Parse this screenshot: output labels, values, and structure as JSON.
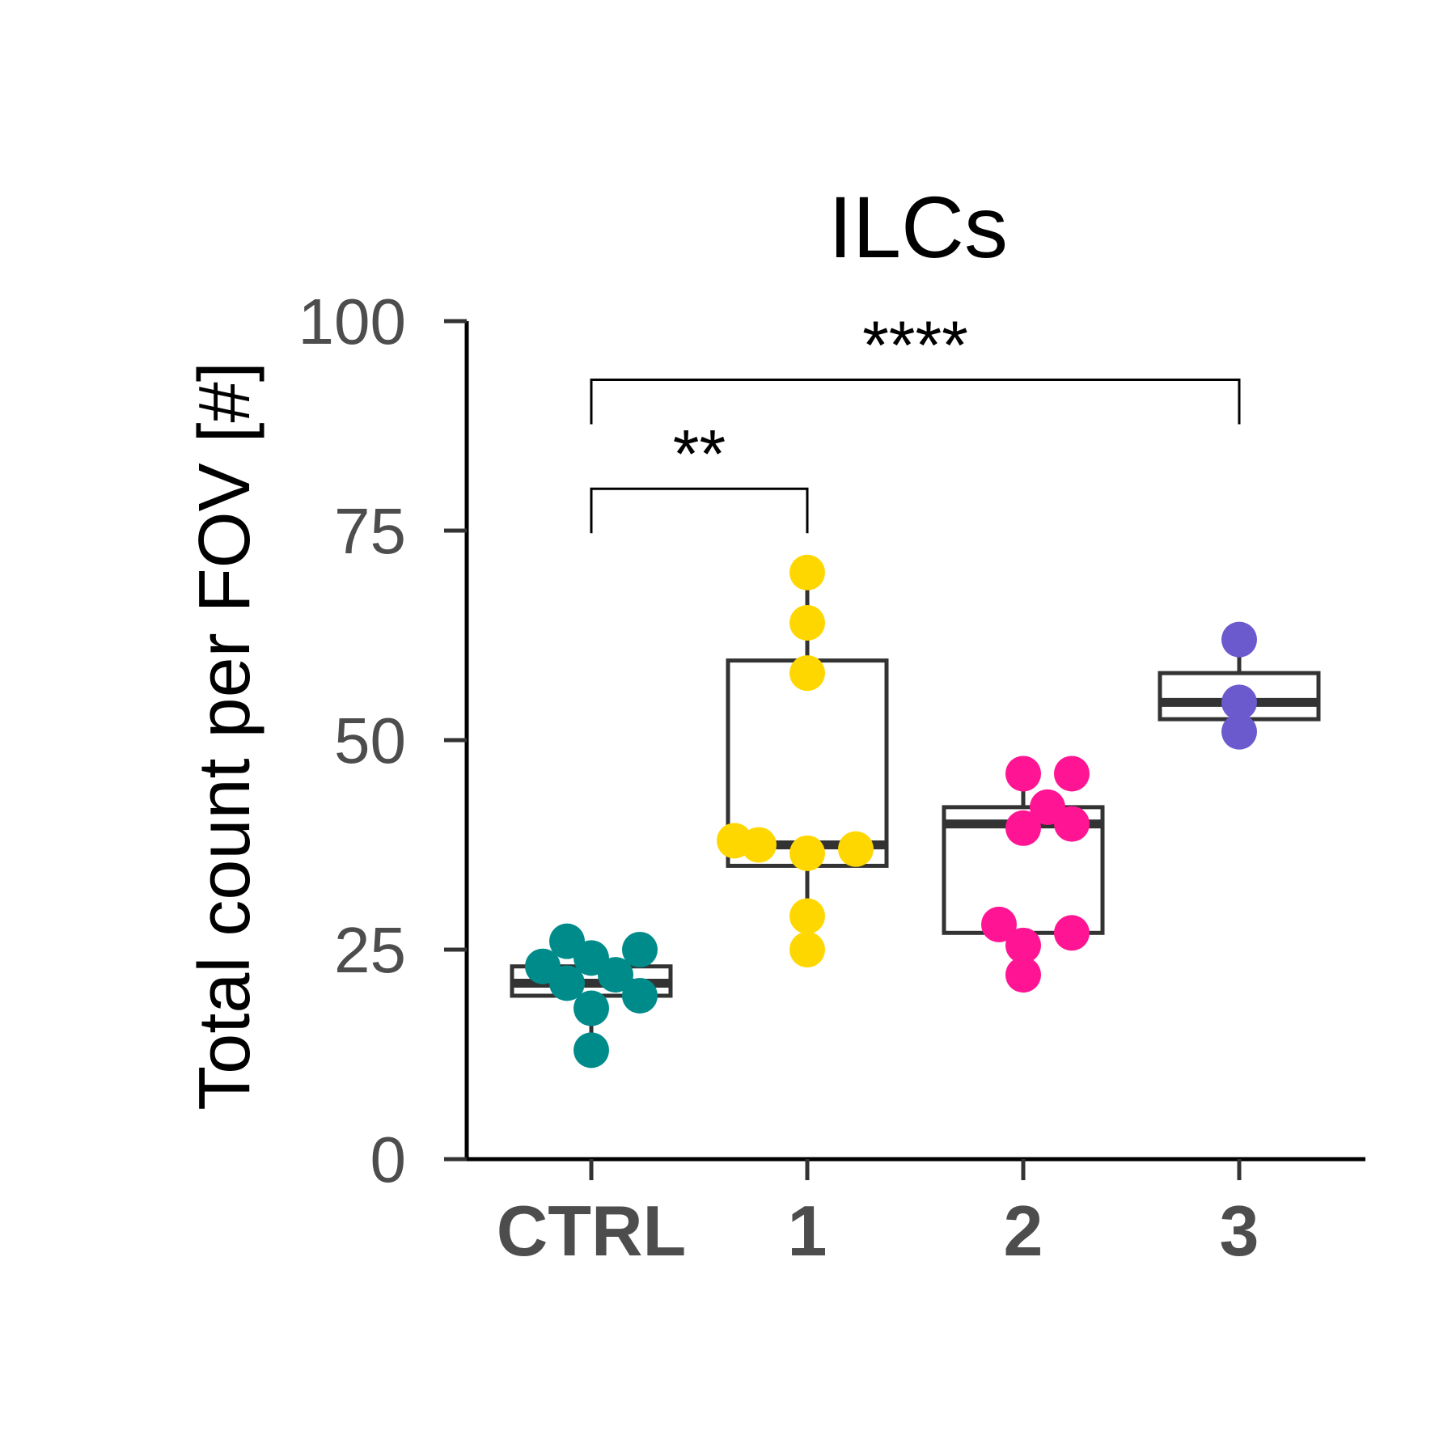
{
  "chart_data": {
    "type": "box",
    "title": "ILCs",
    "xlabel": "",
    "ylabel": "Total count per FOV [#]",
    "ylim": [
      0,
      100
    ],
    "yticks": [
      "0",
      "25",
      "50",
      "75",
      "100"
    ],
    "categories": [
      "CTRL",
      "1",
      "2",
      "3"
    ],
    "boxes": [
      {
        "category": "CTRL",
        "whisker_low": 13,
        "q1": 19.5,
        "median": 21,
        "q3": 23,
        "whisker_high": 26,
        "color": "#008b8b",
        "points": [
          13,
          18,
          19.5,
          21,
          22,
          23,
          24,
          25,
          26
        ]
      },
      {
        "category": "1",
        "whisker_low": 25,
        "q1": 35,
        "median": 37.5,
        "q3": 59.5,
        "whisker_high": 70,
        "color": "#ffd700",
        "points": [
          25,
          29,
          36.5,
          37,
          37.5,
          38,
          58,
          64,
          70
        ]
      },
      {
        "category": "2",
        "whisker_low": 22,
        "q1": 27,
        "median": 40,
        "q3": 42,
        "whisker_high": 46,
        "color": "#ff1493",
        "points": [
          22,
          25.5,
          27,
          28,
          39.5,
          40,
          42,
          46,
          46
        ]
      },
      {
        "category": "3",
        "whisker_low": 51,
        "q1": 52.5,
        "median": 54.5,
        "q3": 58,
        "whisker_high": 62,
        "color": "#6a5acd",
        "points": [
          51,
          54.5,
          62
        ]
      }
    ],
    "significance": [
      {
        "from": "CTRL",
        "to": "1",
        "label": "**",
        "y": 80
      },
      {
        "from": "CTRL",
        "to": "3",
        "label": "****",
        "y": 93
      }
    ]
  }
}
